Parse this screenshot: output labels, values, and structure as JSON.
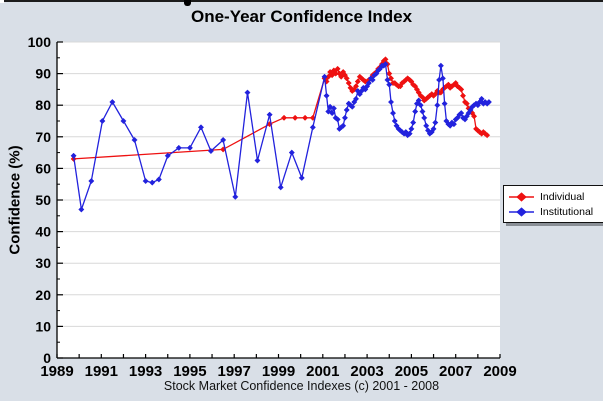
{
  "title": "One-Year Confidence Index",
  "footer": "Stock Market Confidence Indexes (c) 2001 - 2008",
  "y_axis": {
    "label": "Confidence (%)",
    "tick_values": [
      0,
      10,
      20,
      30,
      40,
      50,
      60,
      70,
      80,
      90,
      100
    ],
    "minor_tick_values": [
      5,
      15,
      25,
      35,
      45,
      55,
      65,
      75,
      85,
      95
    ]
  },
  "x_axis": {
    "tick_values": [
      1989,
      1990,
      1991,
      1992,
      1993,
      1994,
      1995,
      1996,
      1997,
      1998,
      1999,
      2000,
      2001,
      2002,
      2003,
      2004,
      2005,
      2006,
      2007,
      2008,
      2009
    ],
    "label_values": [
      1989,
      1991,
      1993,
      1995,
      1997,
      1999,
      2001,
      2003,
      2005,
      2007,
      2009
    ]
  },
  "legend": {
    "items": [
      {
        "label": "Individual",
        "color": "#ee1111"
      },
      {
        "label": "Institutional",
        "color": "#2222dd"
      }
    ]
  },
  "chart_data": {
    "type": "line",
    "title": "One-Year Confidence Index",
    "xlabel": "",
    "ylabel": "Confidence (%)",
    "xlim": [
      1989,
      2009
    ],
    "ylim": [
      0,
      100
    ],
    "grid": "horizontal",
    "legend_position": "right-outside",
    "marker": "diamond",
    "series": [
      {
        "name": "Individual",
        "color": "#ee1111",
        "points": [
          [
            1989.75,
            63
          ],
          [
            1996.5,
            66
          ],
          [
            1998.6,
            74
          ],
          [
            1999.25,
            76
          ],
          [
            1999.75,
            76
          ],
          [
            2000.2,
            76
          ],
          [
            2000.55,
            76
          ],
          [
            2001.08,
            88.5
          ],
          [
            2001.17,
            87.5
          ],
          [
            2001.25,
            89
          ],
          [
            2001.33,
            90.5
          ],
          [
            2001.42,
            89.5
          ],
          [
            2001.5,
            91
          ],
          [
            2001.58,
            90
          ],
          [
            2001.67,
            91.5
          ],
          [
            2001.75,
            90
          ],
          [
            2001.83,
            89
          ],
          [
            2001.92,
            90.5
          ],
          [
            2002,
            89.5
          ],
          [
            2002.08,
            88.5
          ],
          [
            2002.17,
            87
          ],
          [
            2002.25,
            85.5
          ],
          [
            2002.33,
            84.5
          ],
          [
            2002.42,
            85
          ],
          [
            2002.5,
            86
          ],
          [
            2002.58,
            87.5
          ],
          [
            2002.67,
            89
          ],
          [
            2002.75,
            88.5
          ],
          [
            2002.83,
            88
          ],
          [
            2002.92,
            87.5
          ],
          [
            2003,
            87.5
          ],
          [
            2003.08,
            88
          ],
          [
            2003.17,
            88.5
          ],
          [
            2003.25,
            89.5
          ],
          [
            2003.33,
            90
          ],
          [
            2003.42,
            90.5
          ],
          [
            2003.5,
            91.5
          ],
          [
            2003.58,
            92
          ],
          [
            2003.67,
            93
          ],
          [
            2003.75,
            94
          ],
          [
            2003.83,
            94.5
          ],
          [
            2003.92,
            93
          ],
          [
            2004,
            90
          ],
          [
            2004.08,
            88.5
          ],
          [
            2004.17,
            87
          ],
          [
            2004.25,
            87
          ],
          [
            2004.33,
            86.5
          ],
          [
            2004.42,
            86
          ],
          [
            2004.5,
            86
          ],
          [
            2004.58,
            87
          ],
          [
            2004.67,
            87.5
          ],
          [
            2004.75,
            88
          ],
          [
            2004.83,
            88.5
          ],
          [
            2004.92,
            88
          ],
          [
            2005,
            87.5
          ],
          [
            2005.08,
            86.5
          ],
          [
            2005.17,
            86
          ],
          [
            2005.25,
            85
          ],
          [
            2005.33,
            84
          ],
          [
            2005.42,
            83
          ],
          [
            2005.5,
            82.5
          ],
          [
            2005.58,
            81.5
          ],
          [
            2005.67,
            82
          ],
          [
            2005.75,
            82.5
          ],
          [
            2005.83,
            83
          ],
          [
            2005.92,
            83.5
          ],
          [
            2006,
            83
          ],
          [
            2006.08,
            83.5
          ],
          [
            2006.17,
            84.5
          ],
          [
            2006.25,
            84
          ],
          [
            2006.33,
            84
          ],
          [
            2006.42,
            85
          ],
          [
            2006.5,
            85.5
          ],
          [
            2006.58,
            86
          ],
          [
            2006.67,
            86.5
          ],
          [
            2006.75,
            85.5
          ],
          [
            2006.83,
            86
          ],
          [
            2006.92,
            86.5
          ],
          [
            2007,
            87
          ],
          [
            2007.08,
            86
          ],
          [
            2007.17,
            85.5
          ],
          [
            2007.25,
            85
          ],
          [
            2007.33,
            83
          ],
          [
            2007.42,
            81
          ],
          [
            2007.5,
            80.5
          ],
          [
            2007.58,
            79
          ],
          [
            2007.67,
            78
          ],
          [
            2007.75,
            77.5
          ],
          [
            2007.83,
            76.5
          ],
          [
            2007.92,
            72.5
          ],
          [
            2008,
            72
          ],
          [
            2008.08,
            71.5
          ],
          [
            2008.17,
            71
          ],
          [
            2008.25,
            71.5
          ],
          [
            2008.33,
            71
          ],
          [
            2008.42,
            70.5
          ]
        ]
      },
      {
        "name": "Institutional",
        "color": "#2222dd",
        "points": [
          [
            1989.75,
            64
          ],
          [
            1990.1,
            47
          ],
          [
            1990.55,
            56
          ],
          [
            1991.05,
            75
          ],
          [
            1991.5,
            81
          ],
          [
            1992,
            75
          ],
          [
            1992.5,
            69
          ],
          [
            1993,
            56
          ],
          [
            1993.3,
            55.5
          ],
          [
            1993.6,
            56.5
          ],
          [
            1994,
            64
          ],
          [
            1994.5,
            66.5
          ],
          [
            1995,
            66.5
          ],
          [
            1995.5,
            73
          ],
          [
            1995.95,
            65.5
          ],
          [
            1996.5,
            69
          ],
          [
            1997.05,
            51
          ],
          [
            1997.6,
            84
          ],
          [
            1998.05,
            62.5
          ],
          [
            1998.6,
            77
          ],
          [
            1999.1,
            54
          ],
          [
            1999.6,
            65
          ],
          [
            2000.05,
            57
          ],
          [
            2000.55,
            73
          ],
          [
            2001.08,
            89
          ],
          [
            2001.17,
            83
          ],
          [
            2001.25,
            78
          ],
          [
            2001.33,
            79.5
          ],
          [
            2001.42,
            77.5
          ],
          [
            2001.5,
            79
          ],
          [
            2001.58,
            76
          ],
          [
            2001.67,
            75.5
          ],
          [
            2001.75,
            72.5
          ],
          [
            2001.83,
            73
          ],
          [
            2001.92,
            73.5
          ],
          [
            2002,
            76
          ],
          [
            2002.08,
            78.5
          ],
          [
            2002.17,
            80.5
          ],
          [
            2002.25,
            80
          ],
          [
            2002.33,
            79.5
          ],
          [
            2002.42,
            81
          ],
          [
            2002.5,
            82
          ],
          [
            2002.58,
            84.5
          ],
          [
            2002.67,
            83.5
          ],
          [
            2002.75,
            84.5
          ],
          [
            2002.83,
            85.5
          ],
          [
            2002.92,
            85
          ],
          [
            2003,
            86
          ],
          [
            2003.08,
            87
          ],
          [
            2003.17,
            88.5
          ],
          [
            2003.25,
            88
          ],
          [
            2003.33,
            89.5
          ],
          [
            2003.42,
            90
          ],
          [
            2003.5,
            91
          ],
          [
            2003.58,
            91.5
          ],
          [
            2003.67,
            92.5
          ],
          [
            2003.75,
            92.5
          ],
          [
            2003.83,
            93
          ],
          [
            2003.92,
            88
          ],
          [
            2004,
            86.5
          ],
          [
            2004.08,
            81
          ],
          [
            2004.17,
            77.5
          ],
          [
            2004.25,
            75
          ],
          [
            2004.33,
            73.5
          ],
          [
            2004.42,
            72.5
          ],
          [
            2004.5,
            72
          ],
          [
            2004.58,
            71.5
          ],
          [
            2004.67,
            71
          ],
          [
            2004.75,
            71.5
          ],
          [
            2004.83,
            70.5
          ],
          [
            2004.92,
            71
          ],
          [
            2005,
            72.5
          ],
          [
            2005.08,
            74.5
          ],
          [
            2005.17,
            78
          ],
          [
            2005.25,
            80.5
          ],
          [
            2005.33,
            81.5
          ],
          [
            2005.42,
            80
          ],
          [
            2005.5,
            78
          ],
          [
            2005.58,
            76
          ],
          [
            2005.67,
            73.5
          ],
          [
            2005.75,
            72
          ],
          [
            2005.83,
            71
          ],
          [
            2005.92,
            71.5
          ],
          [
            2006,
            72.5
          ],
          [
            2006.08,
            74.5
          ],
          [
            2006.17,
            80
          ],
          [
            2006.25,
            88
          ],
          [
            2006.33,
            92.5
          ],
          [
            2006.42,
            88.5
          ],
          [
            2006.5,
            80.5
          ],
          [
            2006.58,
            75
          ],
          [
            2006.67,
            74
          ],
          [
            2006.75,
            73.5
          ],
          [
            2006.83,
            74.5
          ],
          [
            2006.92,
            74
          ],
          [
            2007,
            75.5
          ],
          [
            2007.08,
            76
          ],
          [
            2007.17,
            77
          ],
          [
            2007.25,
            77.5
          ],
          [
            2007.33,
            76
          ],
          [
            2007.42,
            75.5
          ],
          [
            2007.5,
            76.5
          ],
          [
            2007.58,
            77.5
          ],
          [
            2007.67,
            78.5
          ],
          [
            2007.75,
            79.5
          ],
          [
            2007.83,
            80
          ],
          [
            2007.92,
            80.5
          ],
          [
            2008,
            80
          ],
          [
            2008.08,
            81
          ],
          [
            2008.17,
            82
          ],
          [
            2008.25,
            80.5
          ],
          [
            2008.33,
            81
          ],
          [
            2008.42,
            80.5
          ],
          [
            2008.5,
            81
          ]
        ]
      }
    ]
  }
}
